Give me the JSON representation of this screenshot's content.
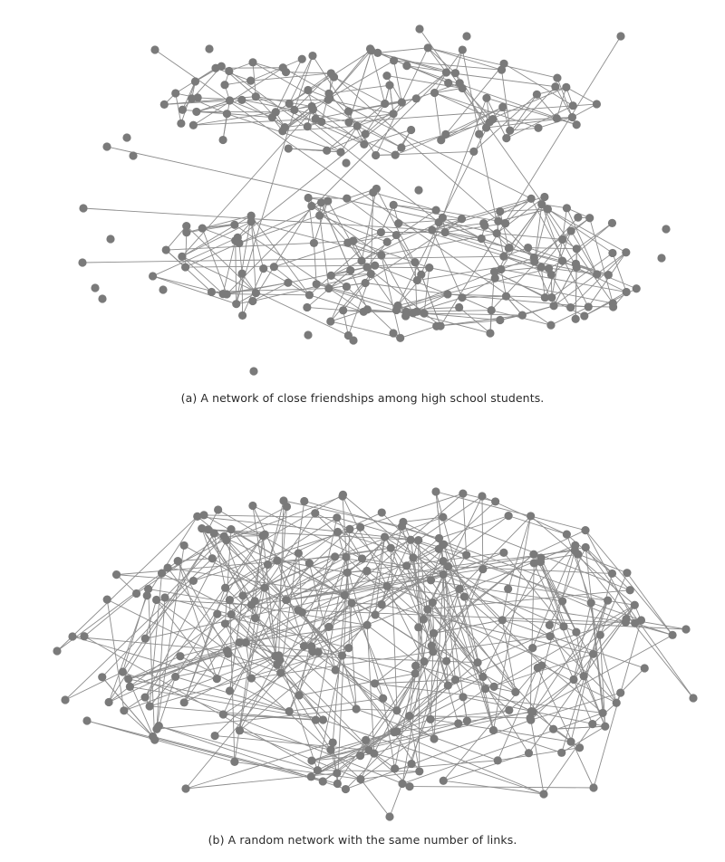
{
  "figure": {
    "node_color": "#7a7a7a",
    "edge_color": "#8c8c8c",
    "background": "#ffffff"
  },
  "panel_a": {
    "caption": "(a) A network of close friendships among high school students."
  },
  "panel_b": {
    "caption": "(b) A random network with the same number of links."
  }
}
